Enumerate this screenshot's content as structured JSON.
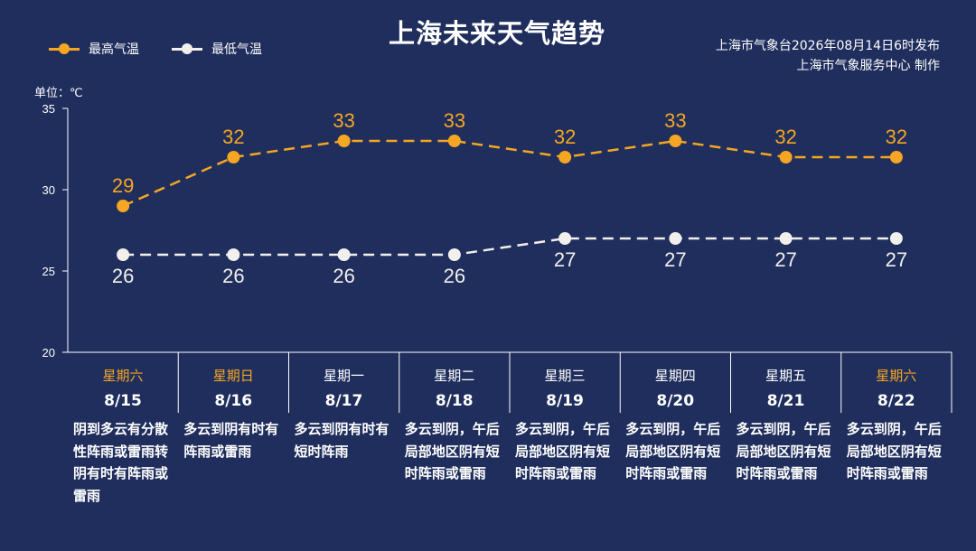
{
  "title": "上海未来天气趋势",
  "legend": {
    "high_label": "最高气温",
    "low_label": "最低气温"
  },
  "source": {
    "line1": "上海市气象台2026年08月14日6时发布",
    "line2": "上海市气象服务中心  制作"
  },
  "unit_label": "单位：℃",
  "colors": {
    "background": "#1f2e5c",
    "high": "#f5a623",
    "low": "#f2f0ec",
    "weekend": "#f5a623",
    "weekday": "#ffffff"
  },
  "chart_data": {
    "type": "line",
    "title": "上海未来天气趋势",
    "ylabel": "单位：℃",
    "ylim": [
      20,
      35
    ],
    "yticks": [
      20,
      25,
      30,
      35
    ],
    "categories": [
      "8/15",
      "8/16",
      "8/17",
      "8/18",
      "8/19",
      "8/20",
      "8/21",
      "8/22"
    ],
    "series": [
      {
        "name": "最高气温",
        "values": [
          29,
          32,
          33,
          33,
          32,
          33,
          32,
          32
        ]
      },
      {
        "name": "最低气温",
        "values": [
          26,
          26,
          26,
          26,
          27,
          27,
          27,
          27
        ]
      }
    ],
    "grid": false,
    "legend_position": "top-left"
  },
  "days": [
    {
      "weekday": "星期六",
      "date": "8/15",
      "weekend": true,
      "desc": "阴到多云有分散性阵雨或雷雨转阴有时有阵雨或雷雨"
    },
    {
      "weekday": "星期日",
      "date": "8/16",
      "weekend": true,
      "desc": "多云到阴有时有阵雨或雷雨"
    },
    {
      "weekday": "星期一",
      "date": "8/17",
      "weekend": false,
      "desc": "多云到阴有时有短时阵雨"
    },
    {
      "weekday": "星期二",
      "date": "8/18",
      "weekend": false,
      "desc": "多云到阴，午后局部地区阴有短时阵雨或雷雨"
    },
    {
      "weekday": "星期三",
      "date": "8/19",
      "weekend": false,
      "desc": "多云到阴，午后局部地区阴有短时阵雨或雷雨"
    },
    {
      "weekday": "星期四",
      "date": "8/20",
      "weekend": false,
      "desc": "多云到阴，午后局部地区阴有短时阵雨或雷雨"
    },
    {
      "weekday": "星期五",
      "date": "8/21",
      "weekend": false,
      "desc": "多云到阴，午后局部地区阴有短时阵雨或雷雨"
    },
    {
      "weekday": "星期六",
      "date": "8/22",
      "weekend": true,
      "desc": "多云到阴，午后局部地区阴有短时阵雨或雷雨"
    }
  ]
}
